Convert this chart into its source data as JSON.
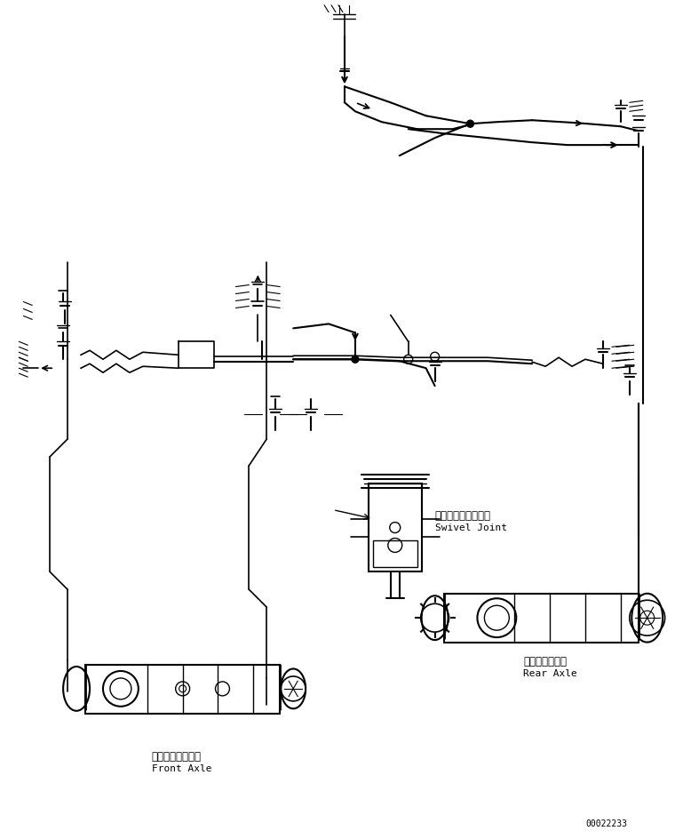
{
  "title": "",
  "background_color": "#ffffff",
  "line_color": "#000000",
  "fig_width": 7.6,
  "fig_height": 9.44,
  "dpi": 100,
  "labels": {
    "swivel_joint_jp": "スイベルジョイント",
    "swivel_joint_en": "Swivel Joint",
    "front_axle_jp": "フロントアクスル",
    "front_axle_en": "Front Axle",
    "rear_axle_jp": "リヤーアクスル",
    "rear_axle_en": "Rear Axle",
    "doc_number": "00022233"
  },
  "label_positions": {
    "swivel_joint": [
      0.575,
      0.445
    ],
    "front_axle": [
      0.23,
      0.135
    ],
    "rear_axle": [
      0.72,
      0.305
    ]
  }
}
